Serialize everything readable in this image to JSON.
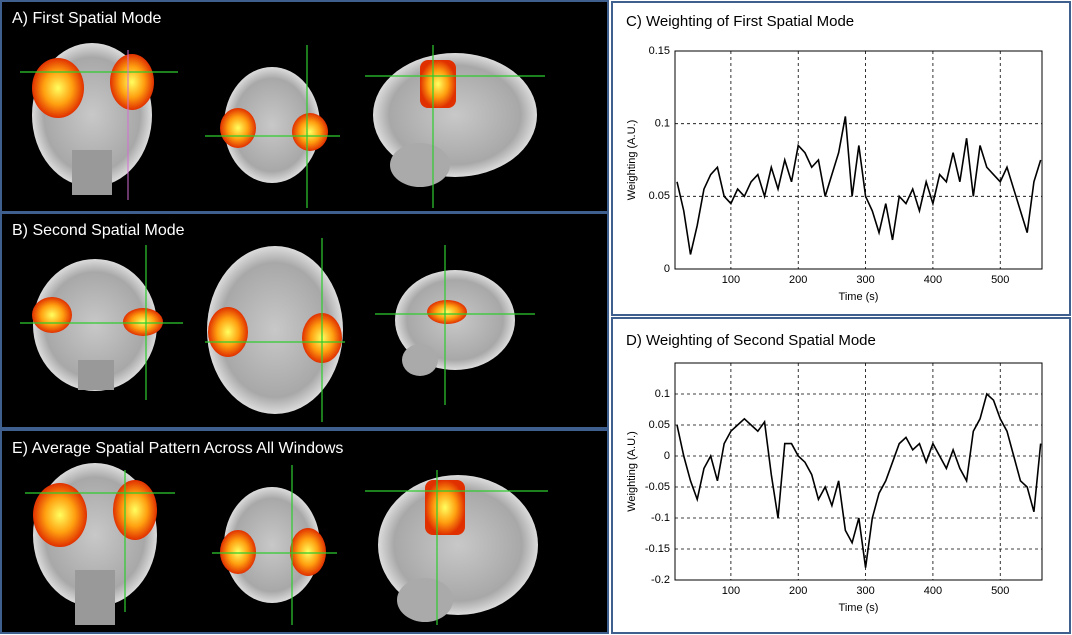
{
  "panels": [
    {
      "title": "A)  First Spatial Mode"
    },
    {
      "title": "B)  Second Spatial Mode"
    },
    {
      "title": "E)  Average Spatial Pattern Across All Windows"
    }
  ],
  "chart_data": [
    {
      "type": "line",
      "title": "C)  Weighting of First Spatial Mode",
      "x_label": "Time (s)",
      "y_label": "Weighting (A.U.)",
      "xlim": [
        17,
        562
      ],
      "ylim": [
        0,
        0.15
      ],
      "xticks": [
        100,
        200,
        300,
        400,
        500
      ],
      "yticks": [
        0,
        0.05,
        0.1,
        0.15
      ],
      "grid": true,
      "x": [
        20,
        30,
        40,
        50,
        60,
        70,
        80,
        90,
        100,
        110,
        120,
        130,
        140,
        150,
        160,
        170,
        180,
        190,
        200,
        210,
        220,
        230,
        240,
        250,
        260,
        270,
        280,
        290,
        300,
        310,
        320,
        330,
        340,
        350,
        360,
        370,
        380,
        390,
        400,
        410,
        420,
        430,
        440,
        450,
        460,
        470,
        480,
        490,
        500,
        510,
        520,
        530,
        540,
        550,
        560
      ],
      "series": [
        {
          "name": "First Spatial Mode",
          "color": "#000000",
          "values": [
            0.06,
            0.04,
            0.01,
            0.03,
            0.055,
            0.065,
            0.07,
            0.05,
            0.045,
            0.055,
            0.05,
            0.06,
            0.065,
            0.05,
            0.07,
            0.055,
            0.075,
            0.06,
            0.085,
            0.08,
            0.07,
            0.075,
            0.05,
            0.065,
            0.08,
            0.105,
            0.05,
            0.085,
            0.05,
            0.04,
            0.025,
            0.045,
            0.02,
            0.05,
            0.045,
            0.055,
            0.04,
            0.06,
            0.045,
            0.065,
            0.06,
            0.08,
            0.06,
            0.09,
            0.05,
            0.085,
            0.07,
            0.065,
            0.06,
            0.07,
            0.055,
            0.04,
            0.025,
            0.06,
            0.075
          ]
        }
      ]
    },
    {
      "type": "line",
      "title": "D)  Weighting of Second Spatial Mode",
      "x_label": "Time (s)",
      "y_label": "Weighting (A.U.)",
      "xlim": [
        17,
        562
      ],
      "ylim": [
        -0.2,
        0.15
      ],
      "xticks": [
        100,
        200,
        300,
        400,
        500
      ],
      "yticks": [
        -0.2,
        -0.15,
        -0.1,
        -0.05,
        0,
        0.05,
        0.1
      ],
      "grid": true,
      "x": [
        20,
        30,
        40,
        50,
        60,
        70,
        80,
        90,
        100,
        110,
        120,
        130,
        140,
        150,
        160,
        170,
        180,
        190,
        200,
        210,
        220,
        230,
        240,
        250,
        260,
        270,
        280,
        290,
        300,
        310,
        320,
        330,
        340,
        350,
        360,
        370,
        380,
        390,
        400,
        410,
        420,
        430,
        440,
        450,
        460,
        470,
        480,
        490,
        500,
        510,
        520,
        530,
        540,
        550,
        560
      ],
      "series": [
        {
          "name": "Second Spatial Mode",
          "color": "#000000",
          "values": [
            0.05,
            0.0,
            -0.04,
            -0.07,
            -0.02,
            0.0,
            -0.04,
            0.02,
            0.04,
            0.05,
            0.06,
            0.05,
            0.04,
            0.055,
            -0.03,
            -0.1,
            0.02,
            0.02,
            0.0,
            -0.01,
            -0.03,
            -0.07,
            -0.05,
            -0.08,
            -0.04,
            -0.12,
            -0.14,
            -0.1,
            -0.18,
            -0.1,
            -0.06,
            -0.04,
            -0.01,
            0.02,
            0.03,
            0.01,
            0.02,
            -0.01,
            0.02,
            0.0,
            -0.02,
            0.01,
            -0.02,
            -0.04,
            0.04,
            0.06,
            0.1,
            0.09,
            0.06,
            0.04,
            0.0,
            -0.04,
            -0.05,
            -0.09,
            0.02
          ]
        }
      ]
    }
  ]
}
